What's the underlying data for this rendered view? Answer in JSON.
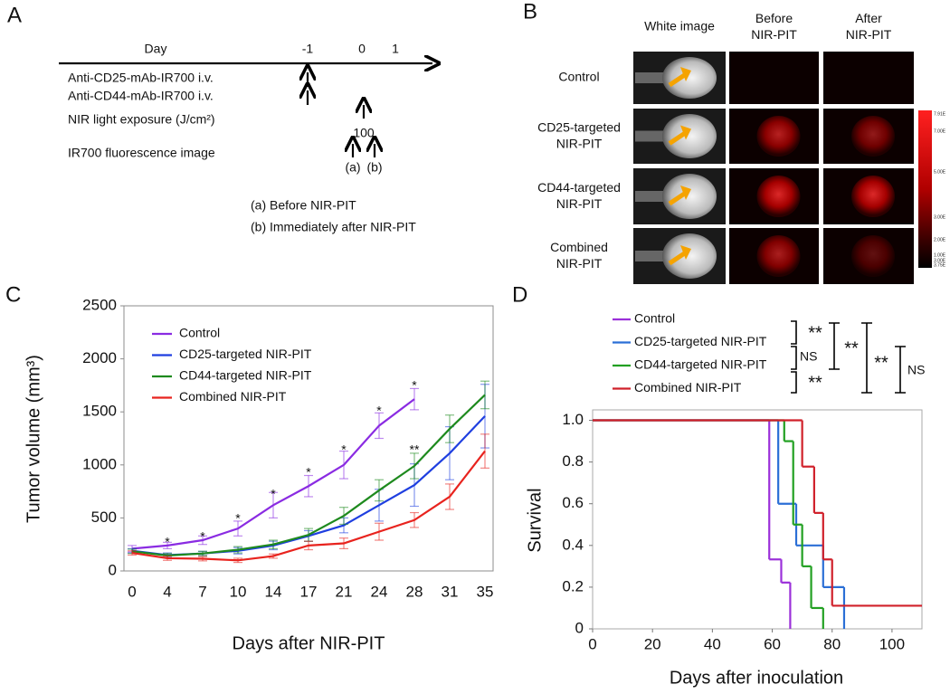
{
  "panel_a": {
    "label": "A",
    "day_label": "Day",
    "days": [
      "-1",
      "0",
      "1"
    ],
    "rows": [
      "Anti-CD25-mAb-IR700  i.v.",
      "Anti-CD44-mAb-IR700  i.v.",
      "NIR light exposure (J/cm²)",
      "IR700 fluorescence image"
    ],
    "dose": "100",
    "markers": [
      "(a)",
      "(b)"
    ],
    "notes": [
      "(a)  Before NIR-PIT",
      "(b)  Immediately after NIR-PIT"
    ]
  },
  "panel_b": {
    "label": "B",
    "columns": [
      "White image",
      "Before\nNIR-PIT",
      "After\nNIR-PIT"
    ],
    "rows": [
      "Control",
      "CD25-targeted\nNIR-PIT",
      "CD44-targeted\nNIR-PIT",
      "Combined\nNIR-PIT"
    ],
    "colorbar_labels": [
      "7.91E",
      "7.00E",
      "5.00E",
      "3.00E",
      "2.00E",
      "1.00E",
      "3.00E",
      "3.75E"
    ]
  },
  "chart_data": [
    {
      "type": "line",
      "panel_label": "C",
      "x_label": "Days after NIR-PIT",
      "y_label": "Tumor volume (mm³)",
      "categories": [
        0,
        4,
        7,
        10,
        14,
        17,
        21,
        24,
        28,
        31,
        35
      ],
      "ylim": [
        0,
        2500
      ],
      "yticks": [
        0,
        500,
        1000,
        1500,
        2000,
        2500
      ],
      "series": [
        {
          "name": "Control",
          "color": "#8a2be2",
          "values": [
            210,
            240,
            290,
            400,
            620,
            800,
            1000,
            1370,
            1620,
            null,
            null
          ],
          "errors": [
            30,
            30,
            40,
            70,
            120,
            100,
            130,
            120,
            100,
            null,
            null
          ]
        },
        {
          "name": "CD25-targeted NIR-PIT",
          "color": "#1f3fe0",
          "values": [
            190,
            150,
            165,
            190,
            240,
            330,
            430,
            620,
            810,
            1110,
            1460
          ],
          "errors": [
            20,
            20,
            20,
            30,
            40,
            50,
            70,
            150,
            200,
            250,
            300
          ]
        },
        {
          "name": "CD44-targeted NIR-PIT",
          "color": "#1e8a1e",
          "values": [
            185,
            145,
            165,
            200,
            250,
            340,
            520,
            760,
            990,
            1340,
            1660
          ],
          "errors": [
            20,
            20,
            20,
            30,
            40,
            60,
            80,
            100,
            120,
            130,
            130
          ]
        },
        {
          "name": "Combined NIR-PIT",
          "color": "#e8231e",
          "values": [
            170,
            120,
            115,
            100,
            140,
            240,
            260,
            370,
            480,
            700,
            1130
          ],
          "errors": [
            20,
            20,
            20,
            20,
            20,
            40,
            50,
            80,
            70,
            120,
            160
          ]
        }
      ],
      "annotations": [
        {
          "text": "*",
          "category": 4,
          "y": 316
        },
        {
          "text": "*",
          "category": 7,
          "y": 367
        },
        {
          "text": "*",
          "category": 10,
          "y": 538
        },
        {
          "text": "*",
          "category": 14,
          "y": 768
        },
        {
          "text": "*",
          "category": 17,
          "y": 973
        },
        {
          "text": "*",
          "category": 21,
          "y": 1186
        },
        {
          "text": "*",
          "category": 24,
          "y": 1553
        },
        {
          "text": "*",
          "category": 28,
          "y": 1792
        },
        {
          "text": "**",
          "category": 28,
          "y": 1186
        }
      ]
    },
    {
      "type": "step",
      "panel_label": "D",
      "x_label": "Days after inoculation",
      "y_label": "Survival",
      "xlim": [
        0,
        110
      ],
      "xticks": [
        0,
        20,
        40,
        60,
        80,
        100
      ],
      "ylim": [
        0,
        1.05
      ],
      "yticks": [
        0,
        0.2,
        0.4,
        0.6,
        0.8,
        {
          "value": 1,
          "label": "1.0"
        }
      ],
      "series": [
        {
          "name": "Control",
          "color": "#9b30d9",
          "x": [
            0,
            59,
            63,
            66
          ],
          "values": [
            1,
            0.333,
            0.222,
            0
          ]
        },
        {
          "name": "CD25-targeted NIR-PIT",
          "color": "#2b6fd6",
          "x": [
            0,
            62,
            68,
            77,
            84
          ],
          "values": [
            1,
            0.6,
            0.4,
            0.2,
            0
          ]
        },
        {
          "name": "CD44-targeted NIR-PIT",
          "color": "#22a022",
          "x": [
            0,
            64,
            67,
            70,
            73,
            77
          ],
          "values": [
            1,
            0.9,
            0.5,
            0.3,
            0.1,
            0
          ]
        },
        {
          "name": "Combined NIR-PIT",
          "color": "#d0202a",
          "x": [
            0,
            70,
            74,
            77,
            80,
            110
          ],
          "values": [
            1,
            0.778,
            0.556,
            0.333,
            0.111,
            0.111
          ]
        }
      ],
      "significance": [
        "**",
        "NS",
        "**",
        "**",
        "**",
        "NS"
      ]
    }
  ]
}
